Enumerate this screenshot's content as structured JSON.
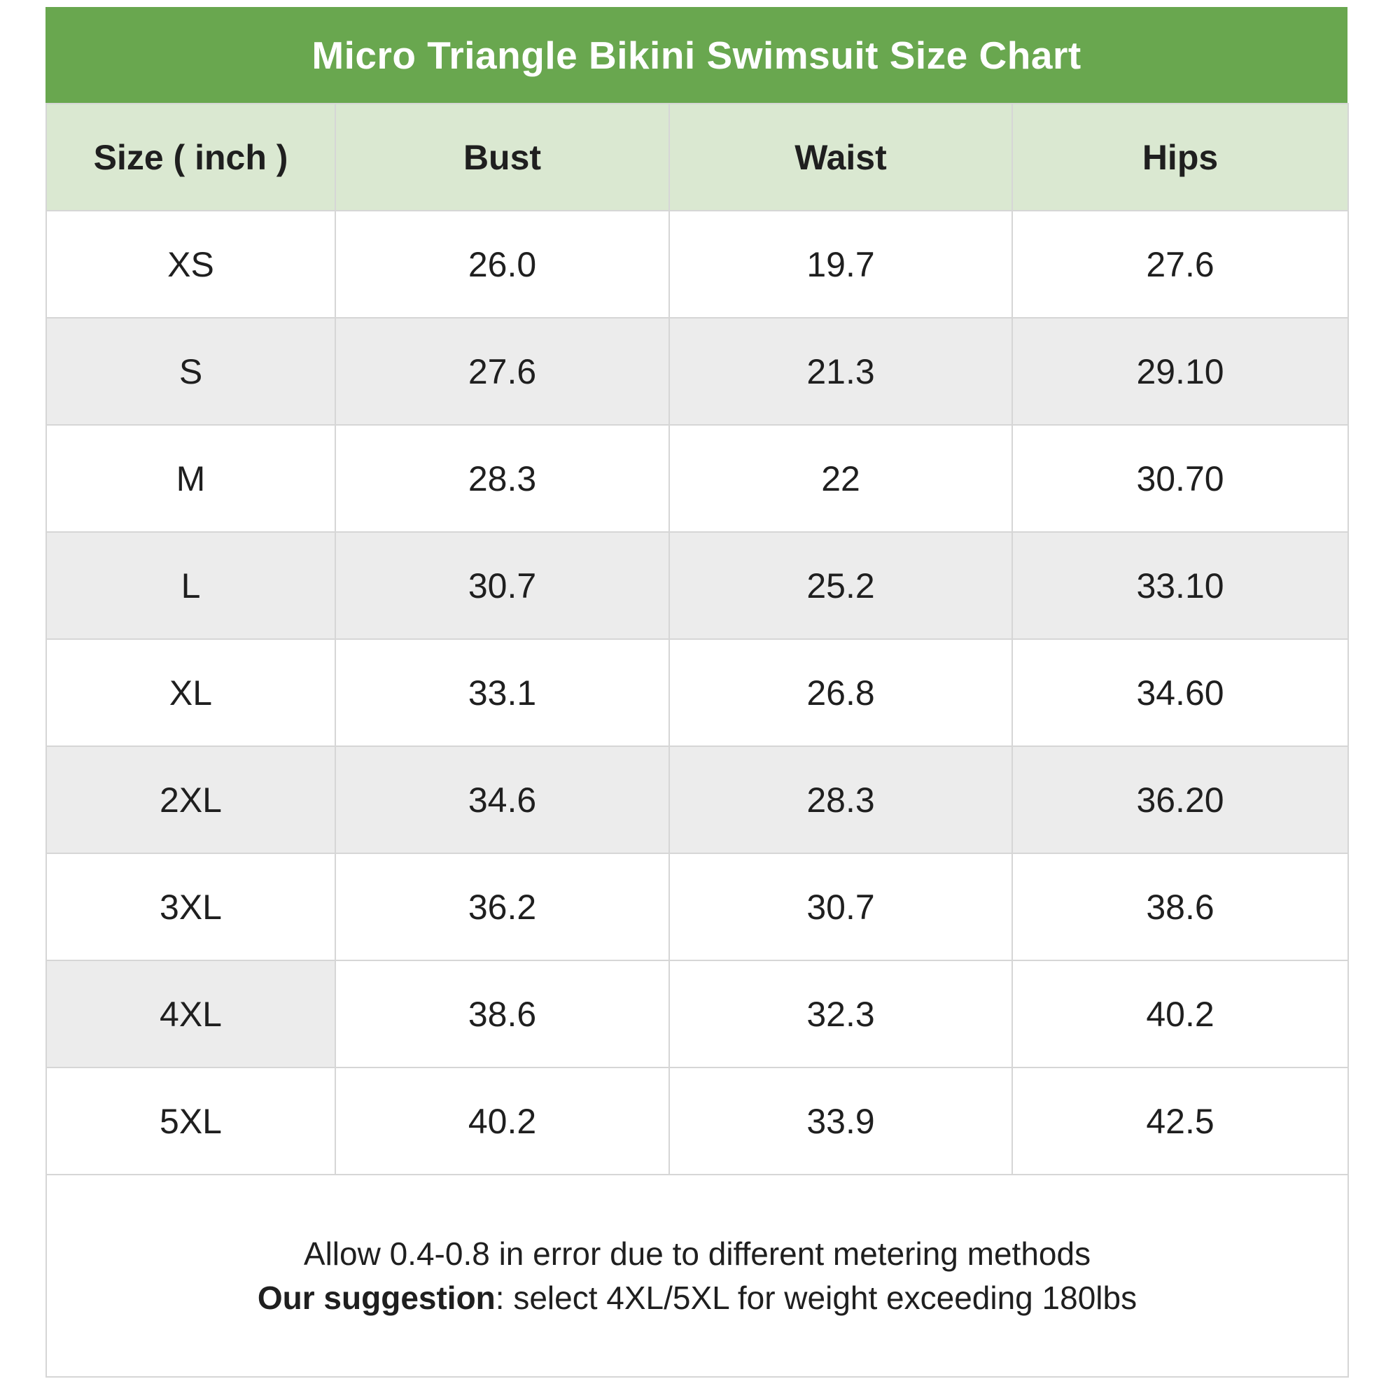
{
  "title_bar": "Micro Triangle Bikini Swimsuit Size Chart",
  "table": {
    "columns": [
      "Size ( inch )",
      "Bust",
      "Waist",
      "Hips"
    ],
    "rows": [
      {
        "size": "XS",
        "bust": "26.0",
        "waist": "19.7",
        "hips": "27.6"
      },
      {
        "size": "S",
        "bust": "27.6",
        "waist": "21.3",
        "hips": "29.10"
      },
      {
        "size": "M",
        "bust": "28.3",
        "waist": "22",
        "hips": "30.70"
      },
      {
        "size": "L",
        "bust": "30.7",
        "waist": "25.2",
        "hips": "33.10"
      },
      {
        "size": "XL",
        "bust": "33.1",
        "waist": "26.8",
        "hips": "34.60"
      },
      {
        "size": "2XL",
        "bust": "34.6",
        "waist": "28.3",
        "hips": "36.20"
      },
      {
        "size": "3XL",
        "bust": "36.2",
        "waist": "30.7",
        "hips": "38.6"
      },
      {
        "size": "4XL",
        "bust": "38.6",
        "waist": "32.3",
        "hips": "40.2"
      },
      {
        "size": "5XL",
        "bust": "40.2",
        "waist": "33.9",
        "hips": "42.5"
      }
    ]
  },
  "notes": {
    "line1": "Allow 0.4-0.8 in error due to different metering methods",
    "line2_bold": "Our suggestion",
    "line2_rest": ": select 4XL/5XL for weight exceeding 180lbs"
  },
  "colors": {
    "title_bg": "#69a74f",
    "header_bg": "#dae8d1",
    "row_alt_bg": "#ececec",
    "border": "#d6d6d6",
    "title_text": "#ffffff",
    "body_text": "#1f1f1f"
  },
  "chart_data": {
    "type": "table",
    "title": "Micro Triangle Bikini Swimsuit Size Chart",
    "unit": "inch",
    "columns": [
      "Size ( inch )",
      "Bust",
      "Waist",
      "Hips"
    ],
    "rows": [
      [
        "XS",
        26.0,
        19.7,
        "27.6"
      ],
      [
        "S",
        27.6,
        21.3,
        "29.10"
      ],
      [
        "M",
        28.3,
        22,
        "30.70"
      ],
      [
        "L",
        30.7,
        25.2,
        "33.10"
      ],
      [
        "XL",
        33.1,
        26.8,
        "34.60"
      ],
      [
        "2XL",
        34.6,
        28.3,
        "36.20"
      ],
      [
        "3XL",
        36.2,
        30.7,
        "38.6"
      ],
      [
        "4XL",
        38.6,
        32.3,
        "40.2"
      ],
      [
        "5XL",
        40.2,
        33.9,
        "42.5"
      ]
    ],
    "notes": [
      "Allow 0.4-0.8 in error due to different metering methods",
      "Our suggestion: select 4XL/5XL for weight exceeding 180lbs"
    ],
    "layout": {
      "header_fill": "#dae8d1",
      "title_fill": "#69a74f",
      "alternating_rows": true
    }
  }
}
